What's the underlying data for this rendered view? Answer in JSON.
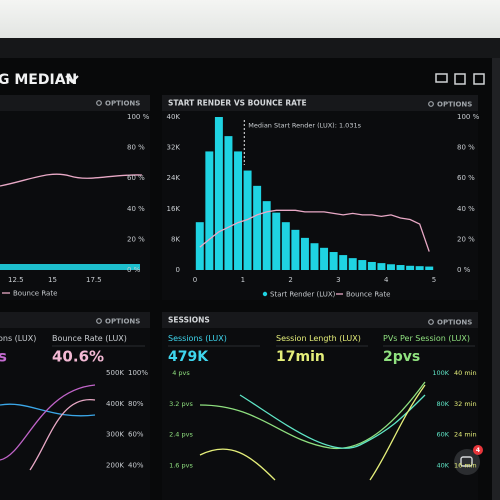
{
  "toolbar": {
    "title": "G MEDIAN"
  },
  "left_top": {
    "options": "OPTIONS",
    "yticks": [
      "100 %",
      "80 %",
      "60 %",
      "40 %",
      "20 %",
      "0 %"
    ],
    "xticks": [
      "12.5",
      "15",
      "17.5"
    ],
    "legend": "Bounce Rate"
  },
  "chart_data": {
    "type": "histogram",
    "title": "START RENDER VS BOUNCE RATE",
    "options": "OPTIONS",
    "annotation": "Median Start Render (LUX): 1.031s",
    "median": 1.031,
    "bins": [
      0,
      0.2,
      0.4,
      0.6,
      0.8,
      1,
      1.2,
      1.4,
      1.6,
      1.8,
      2,
      2.2,
      2.4,
      2.6,
      2.8,
      3,
      3.2,
      3.4,
      3.6,
      3.8,
      4,
      4.2,
      4.4,
      4.6,
      4.8,
      5
    ],
    "series": [
      {
        "name": "Start Render (LUX)",
        "color": "#1fd3e2",
        "values": [
          12500,
          31000,
          40000,
          35000,
          31000,
          26000,
          22000,
          18000,
          15000,
          12500,
          10500,
          8400,
          7000,
          5800,
          4700,
          3900,
          3100,
          2600,
          2100,
          1800,
          1500,
          1300,
          1100,
          1000,
          900
        ]
      },
      {
        "name": "Bounce Rate",
        "color": "#e9a9c6",
        "axis": "y2",
        "values": [
          15,
          20,
          25,
          28,
          31,
          33,
          36,
          38,
          39,
          39,
          39,
          38,
          38,
          38,
          37,
          36,
          37,
          36,
          36,
          35,
          36,
          34,
          33,
          30,
          12
        ]
      }
    ],
    "xlim": [
      0,
      5
    ],
    "xticks": [
      0,
      1,
      2,
      3,
      4,
      5
    ],
    "ylim": [
      0,
      40000
    ],
    "yticks": [
      0,
      {
        "value": 8000,
        "label": "8K"
      },
      {
        "value": 16000,
        "label": "16K"
      },
      {
        "value": 24000,
        "label": "24K"
      },
      {
        "value": 32000,
        "label": "32K"
      },
      {
        "value": 40000,
        "label": "40K"
      }
    ],
    "y2lim": [
      0,
      100
    ],
    "y2ticks": [
      {
        "value": 0,
        "label": "0 %"
      },
      {
        "value": 20,
        "label": "20 %"
      },
      {
        "value": 40,
        "label": "40 %"
      },
      {
        "value": 60,
        "label": "60 %"
      },
      {
        "value": 80,
        "label": "80 %"
      },
      {
        "value": 100,
        "label": "100 %"
      }
    ]
  },
  "left_bottom": {
    "options": "OPTIONS",
    "metrics": [
      {
        "label": "ons (LUX)",
        "value": "s"
      },
      {
        "label": "Bounce Rate (LUX)",
        "value": "40.6%"
      }
    ],
    "left_ticks": [
      "500K",
      "400K",
      "300K",
      "200K"
    ],
    "right_ticks": [
      "100%",
      "80%",
      "60%",
      "40%"
    ]
  },
  "sessions": {
    "title": "SESSIONS",
    "options": "OPTIONS",
    "metrics": [
      {
        "label": "Sessions (LUX)",
        "value": "479K"
      },
      {
        "label": "Session Length (LUX)",
        "value": "17min"
      },
      {
        "label": "PVs Per Session (LUX)",
        "value": "2pvs"
      }
    ],
    "left_ticks": [
      "4 pvs",
      "3.2 pvs",
      "2.4 pvs",
      "1.6 pvs"
    ],
    "right_ticks": [
      "100K",
      "80K",
      "60K",
      "40K"
    ],
    "right2_ticks": [
      "40 min",
      "32 min",
      "24 min",
      "16 min"
    ]
  },
  "chat": {
    "badge": "4"
  }
}
